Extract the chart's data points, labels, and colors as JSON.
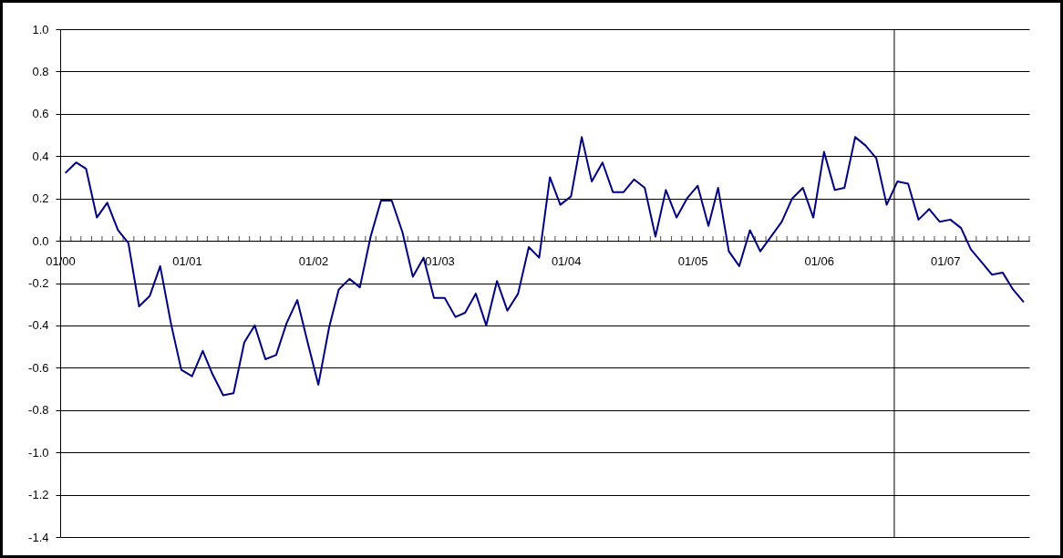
{
  "chart_data": {
    "type": "line",
    "x": [
      "2000-01-16",
      "2000-02-16",
      "2000-03-16",
      "2000-04-16",
      "2000-05-16",
      "2000-06-16",
      "2000-07-16",
      "2000-08-16",
      "2000-09-16",
      "2000-10-16",
      "2000-11-16",
      "2000-12-16",
      "2001-01-16",
      "2001-02-16",
      "2001-03-16",
      "2001-04-16",
      "2001-05-16",
      "2001-06-16",
      "2001-07-16",
      "2001-08-16",
      "2001-09-16",
      "2001-10-16",
      "2001-11-16",
      "2001-12-16",
      "2002-01-16",
      "2002-02-16",
      "2002-03-16",
      "2002-04-16",
      "2002-05-16",
      "2002-06-16",
      "2002-07-16",
      "2002-08-16",
      "2002-09-16",
      "2002-10-16",
      "2002-11-16",
      "2002-12-16",
      "2003-01-16",
      "2003-02-16",
      "2003-03-16",
      "2003-04-16",
      "2003-05-16",
      "2003-06-16",
      "2003-07-16",
      "2003-08-16",
      "2003-09-16",
      "2003-10-16",
      "2003-11-16",
      "2003-12-16",
      "2004-01-16",
      "2004-02-16",
      "2004-03-16",
      "2004-04-16",
      "2004-05-16",
      "2004-06-16",
      "2004-07-16",
      "2004-08-16",
      "2004-09-16",
      "2004-10-16",
      "2004-11-16",
      "2004-12-16",
      "2005-01-16",
      "2005-02-16",
      "2005-03-16",
      "2005-04-16",
      "2005-05-16",
      "2005-06-16",
      "2005-07-16",
      "2005-08-16",
      "2005-09-16",
      "2005-10-16",
      "2005-11-16",
      "2005-12-16",
      "2006-01-16",
      "2006-02-16",
      "2006-03-16",
      "2006-04-16",
      "2006-05-16",
      "2006-06-16",
      "2006-07-16",
      "2006-08-16",
      "2006-09-16",
      "2006-10-16",
      "2006-11-16",
      "2006-12-16",
      "2007-01-16",
      "2007-02-16",
      "2007-03-16",
      "2007-04-16",
      "2007-05-16",
      "2007-06-16",
      "2007-07-16",
      "2007-08-16"
    ],
    "series": [
      {
        "color": "#000080",
        "values": [
          0.32,
          0.37,
          0.34,
          0.11,
          0.18,
          0.05,
          -0.01,
          -0.31,
          -0.26,
          -0.12,
          -0.39,
          -0.61,
          -0.64,
          -0.52,
          -0.63,
          -0.73,
          -0.72,
          -0.48,
          -0.4,
          -0.56,
          -0.54,
          -0.39,
          -0.28,
          -0.48,
          -0.68,
          -0.41,
          -0.23,
          -0.18,
          -0.22,
          0.02,
          0.19,
          0.19,
          0.04,
          -0.17,
          -0.08,
          -0.27,
          -0.27,
          -0.36,
          -0.34,
          -0.25,
          -0.4,
          -0.19,
          -0.33,
          -0.25,
          -0.03,
          -0.08,
          0.3,
          0.17,
          0.21,
          0.49,
          0.28,
          0.37,
          0.23,
          0.23,
          0.29,
          0.25,
          0.02,
          0.24,
          0.11,
          0.2,
          0.26,
          0.07,
          0.25,
          -0.05,
          -0.12,
          0.05,
          -0.05,
          0.02,
          0.09,
          0.2,
          0.25,
          0.11,
          0.42,
          0.24,
          0.25,
          0.49,
          0.45,
          0.39,
          0.17,
          0.28,
          0.27,
          0.1,
          0.15,
          0.09,
          0.1,
          0.06,
          -0.04,
          -0.1,
          -0.16,
          -0.15,
          -0.23,
          -0.29
        ]
      }
    ],
    "xlim": [
      "2000-01",
      "2007-09"
    ],
    "xticks": [
      {
        "value": "2000-01",
        "label": "01/00"
      },
      {
        "value": "2000-02",
        "label": null
      },
      {
        "value": "2000-03",
        "label": null
      },
      {
        "value": "2000-04",
        "label": null
      },
      {
        "value": "2000-05",
        "label": null
      },
      {
        "value": "2000-06",
        "label": null
      },
      {
        "value": "2000-07",
        "label": null
      },
      {
        "value": "2000-08",
        "label": null
      },
      {
        "value": "2000-09",
        "label": null
      },
      {
        "value": "2000-10",
        "label": null
      },
      {
        "value": "2000-11",
        "label": null
      },
      {
        "value": "2000-12",
        "label": null
      },
      {
        "value": "2001-01",
        "label": "01/01"
      },
      {
        "value": "2001-02",
        "label": null
      },
      {
        "value": "2001-03",
        "label": null
      },
      {
        "value": "2001-04",
        "label": null
      },
      {
        "value": "2001-05",
        "label": null
      },
      {
        "value": "2001-06",
        "label": null
      },
      {
        "value": "2001-07",
        "label": null
      },
      {
        "value": "2001-08",
        "label": null
      },
      {
        "value": "2001-09",
        "label": null
      },
      {
        "value": "2001-10",
        "label": null
      },
      {
        "value": "2001-11",
        "label": null
      },
      {
        "value": "2001-12",
        "label": null
      },
      {
        "value": "2002-01",
        "label": "01/02"
      },
      {
        "value": "2002-02",
        "label": null
      },
      {
        "value": "2002-03",
        "label": null
      },
      {
        "value": "2002-04",
        "label": null
      },
      {
        "value": "2002-05",
        "label": null
      },
      {
        "value": "2002-06",
        "label": null
      },
      {
        "value": "2002-07",
        "label": null
      },
      {
        "value": "2002-08",
        "label": null
      },
      {
        "value": "2002-09",
        "label": null
      },
      {
        "value": "2002-10",
        "label": null
      },
      {
        "value": "2002-11",
        "label": null
      },
      {
        "value": "2002-12",
        "label": null
      },
      {
        "value": "2003-01",
        "label": "01/03"
      },
      {
        "value": "2003-02",
        "label": null
      },
      {
        "value": "2003-03",
        "label": null
      },
      {
        "value": "2003-04",
        "label": null
      },
      {
        "value": "2003-05",
        "label": null
      },
      {
        "value": "2003-06",
        "label": null
      },
      {
        "value": "2003-07",
        "label": null
      },
      {
        "value": "2003-08",
        "label": null
      },
      {
        "value": "2003-09",
        "label": null
      },
      {
        "value": "2003-10",
        "label": null
      },
      {
        "value": "2003-11",
        "label": null
      },
      {
        "value": "2003-12",
        "label": null
      },
      {
        "value": "2004-01",
        "label": "01/04"
      },
      {
        "value": "2004-02",
        "label": null
      },
      {
        "value": "2004-03",
        "label": null
      },
      {
        "value": "2004-04",
        "label": null
      },
      {
        "value": "2004-05",
        "label": null
      },
      {
        "value": "2004-06",
        "label": null
      },
      {
        "value": "2004-07",
        "label": null
      },
      {
        "value": "2004-08",
        "label": null
      },
      {
        "value": "2004-09",
        "label": null
      },
      {
        "value": "2004-10",
        "label": null
      },
      {
        "value": "2004-11",
        "label": null
      },
      {
        "value": "2004-12",
        "label": null
      },
      {
        "value": "2005-01",
        "label": "01/05"
      },
      {
        "value": "2005-02",
        "label": null
      },
      {
        "value": "2005-03",
        "label": null
      },
      {
        "value": "2005-04",
        "label": null
      },
      {
        "value": "2005-05",
        "label": null
      },
      {
        "value": "2005-06",
        "label": null
      },
      {
        "value": "2005-07",
        "label": null
      },
      {
        "value": "2005-08",
        "label": null
      },
      {
        "value": "2005-09",
        "label": null
      },
      {
        "value": "2005-10",
        "label": null
      },
      {
        "value": "2005-11",
        "label": null
      },
      {
        "value": "2005-12",
        "label": null
      },
      {
        "value": "2006-01",
        "label": "01/06"
      },
      {
        "value": "2006-02",
        "label": null
      },
      {
        "value": "2006-03",
        "label": null
      },
      {
        "value": "2006-04",
        "label": null
      },
      {
        "value": "2006-05",
        "label": null
      },
      {
        "value": "2006-06",
        "label": null
      },
      {
        "value": "2006-07",
        "label": null
      },
      {
        "value": "2006-08",
        "label": null
      },
      {
        "value": "2006-09",
        "label": null
      },
      {
        "value": "2006-10",
        "label": null
      },
      {
        "value": "2006-11",
        "label": null
      },
      {
        "value": "2006-12",
        "label": null
      },
      {
        "value": "2007-01",
        "label": "01/07"
      },
      {
        "value": "2007-02",
        "label": null
      },
      {
        "value": "2007-03",
        "label": null
      },
      {
        "value": "2007-04",
        "label": null
      },
      {
        "value": "2007-05",
        "label": null
      },
      {
        "value": "2007-06",
        "label": null
      },
      {
        "value": "2007-07",
        "label": null
      },
      {
        "value": "2007-08",
        "label": null
      },
      {
        "value": "2007-09",
        "label": null
      }
    ],
    "ylim": [
      -1.4,
      1.0
    ],
    "yticks": [
      {
        "value": -1.4,
        "label": "-1.4"
      },
      {
        "value": -1.2,
        "label": "-1.2"
      },
      {
        "value": -1.0,
        "label": "-1.0"
      },
      {
        "value": -0.8,
        "label": "-0.8"
      },
      {
        "value": -0.6,
        "label": "-0.6"
      },
      {
        "value": -0.4,
        "label": "-0.4"
      },
      {
        "value": -0.2,
        "label": "-0.2"
      },
      {
        "value": 0,
        "label": "0.0"
      },
      {
        "value": 0.2,
        "label": "0.2"
      },
      {
        "value": 0.4,
        "label": "0.4"
      },
      {
        "value": 0.6,
        "label": "0.6"
      },
      {
        "value": 0.8,
        "label": "0.8"
      },
      {
        "value": 1.0,
        "label": "1.0"
      }
    ],
    "grid": "y",
    "ref_lines": [
      {
        "axis": "x",
        "value": "2006-08-07",
        "color": "#000000"
      }
    ]
  }
}
